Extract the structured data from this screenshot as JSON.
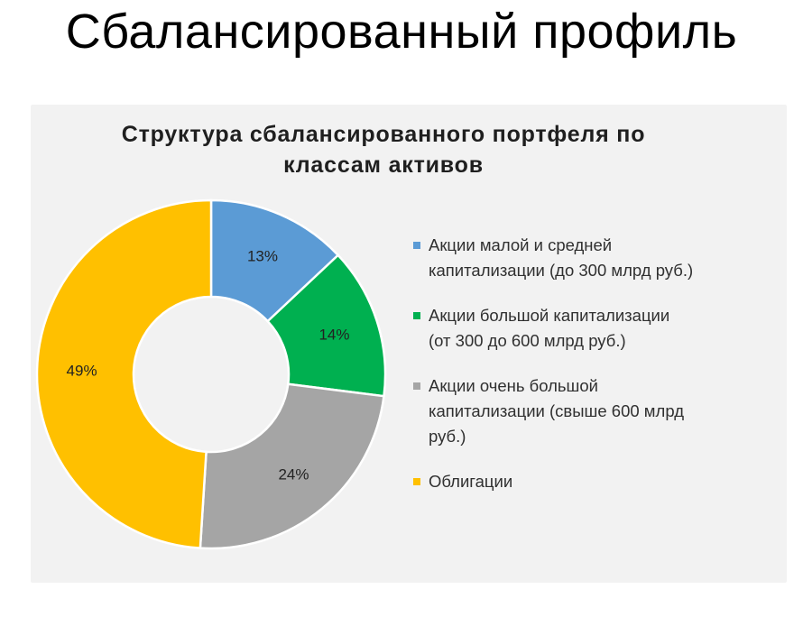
{
  "slide": {
    "title": "Сбалансированный профиль"
  },
  "colors": {
    "small_mid_cap": "#5b9bd5",
    "large_cap": "#00b050",
    "very_large_cap": "#a5a5a5",
    "bonds": "#ffc000",
    "chart_background": "#f2f2f2"
  },
  "chart_data": {
    "type": "pie",
    "subtype": "donut",
    "title_lines": [
      "Структура сбалансированного портфеля по",
      "классам активов"
    ],
    "legend_position": "right",
    "series": [
      {
        "name_lines": [
          "Акции малой и средней",
          "капитализации (до 300 млрд руб.)"
        ],
        "value": 13,
        "label": "13%",
        "color": "#5b9bd5"
      },
      {
        "name_lines": [
          "Акции большой капитализации",
          "(от 300 до 600 млрд руб.)"
        ],
        "value": 14,
        "label": "14%",
        "color": "#00b050"
      },
      {
        "name_lines": [
          "Акции очень большой",
          "капитализации (свыше 600 млрд",
          "руб.)"
        ],
        "value": 24,
        "label": "24%",
        "color": "#a5a5a5"
      },
      {
        "name_lines": [
          "Облигации"
        ],
        "value": 49,
        "label": "49%",
        "color": "#ffc000"
      }
    ]
  }
}
